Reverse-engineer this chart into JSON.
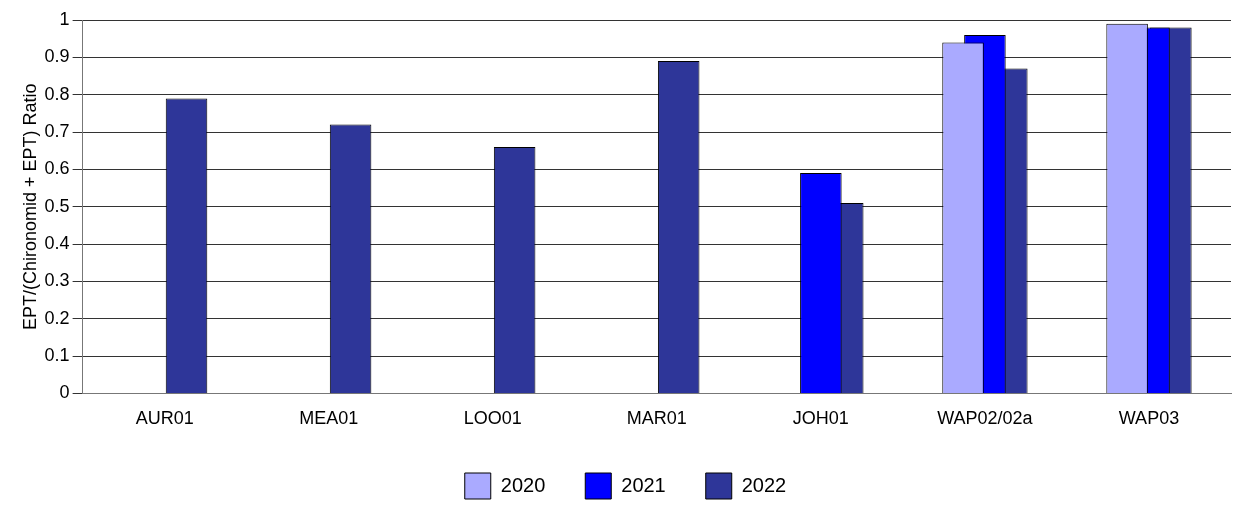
{
  "chart_data": {
    "type": "bar",
    "ylabel": "EPT/(Chironomid + EPT) Ratio",
    "categories": [
      "AUR01",
      "MEA01",
      "LOO01",
      "MAR01",
      "JOH01",
      "WAP02/02a",
      "WAP03"
    ],
    "series": [
      {
        "name": "2020",
        "color": "#aaaaff",
        "values": [
          null,
          null,
          null,
          null,
          null,
          0.94,
          0.99
        ]
      },
      {
        "name": "2021",
        "color": "#0000ff",
        "values": [
          null,
          null,
          null,
          null,
          0.59,
          0.96,
          0.98
        ]
      },
      {
        "name": "2022",
        "color": "#2e3699",
        "values": [
          0.79,
          0.72,
          0.66,
          0.89,
          0.51,
          0.87,
          0.98
        ]
      }
    ],
    "ylim": [
      0,
      1
    ],
    "yticks": [
      0,
      0.1,
      0.2,
      0.3,
      0.4,
      0.5,
      0.6,
      0.7,
      0.8,
      0.9,
      1
    ],
    "grid": "y",
    "legend": "bottom"
  }
}
